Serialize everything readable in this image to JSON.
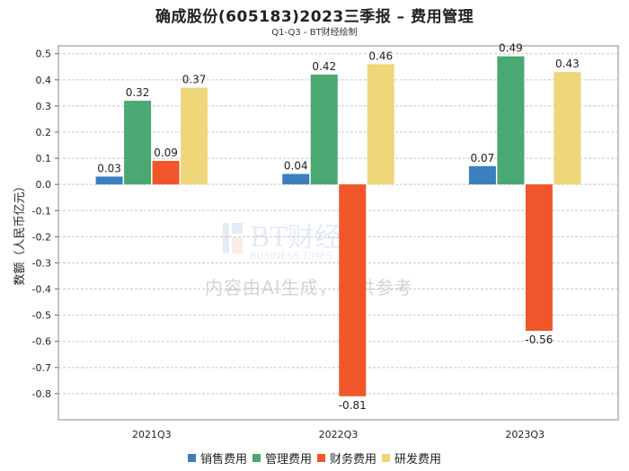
{
  "title": "确成股份(605183)2023三季报 – 费用管理",
  "subtitle": "Q1-Q3 - BT财经绘制",
  "watermark": {
    "logo_text": "BT财经",
    "logo_sub": "BUSINESS TIMES",
    "text": "内容由AI生成，仅供参考"
  },
  "chart_data": {
    "type": "bar",
    "title": "确成股份(605183)2023三季报 – 费用管理",
    "subtitle": "Q1-Q3 - BT财经绘制",
    "xlabel": "",
    "ylabel": "数额（人民币亿元）",
    "ylim": [
      -0.9,
      0.53
    ],
    "yticks": [
      0.5,
      0.4,
      0.3,
      0.2,
      0.1,
      0.0,
      -0.1,
      -0.2,
      -0.3,
      -0.4,
      -0.5,
      -0.6,
      -0.7,
      -0.8
    ],
    "ytick_labels": [
      "0.5",
      "0.4",
      "0.3",
      "0.2",
      "0.1",
      "0.0",
      "-0.1",
      "-0.2",
      "-0.3",
      "-0.4",
      "-0.5",
      "-0.6",
      "-0.7",
      "-0.8"
    ],
    "grid": true,
    "legend_position": "bottom",
    "categories": [
      "2021Q3",
      "2022Q3",
      "2023Q3"
    ],
    "series": [
      {
        "name": "销售费用",
        "color": "#3b7fc0",
        "values": [
          0.03,
          0.04,
          0.07
        ],
        "labels": [
          "0.03",
          "0.04",
          "0.07"
        ]
      },
      {
        "name": "管理费用",
        "color": "#4aa872",
        "values": [
          0.32,
          0.42,
          0.49
        ],
        "labels": [
          "0.32",
          "0.42",
          "0.49"
        ]
      },
      {
        "name": "财务费用",
        "color": "#f0562a",
        "values": [
          0.09,
          -0.81,
          -0.56
        ],
        "labels": [
          "0.09",
          "-0.81",
          "-0.56"
        ]
      },
      {
        "name": "研发费用",
        "color": "#efd67a",
        "values": [
          0.37,
          0.46,
          0.43
        ],
        "labels": [
          "0.37",
          "0.46",
          "0.43"
        ]
      }
    ]
  }
}
